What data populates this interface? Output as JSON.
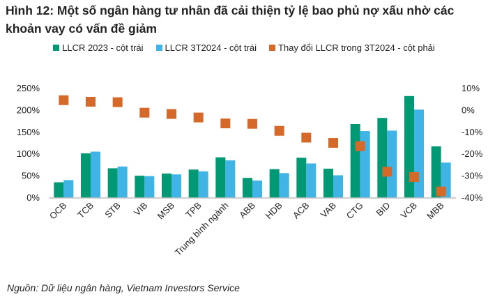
{
  "title": "Hình 12: Một số ngân hàng tư nhân đã cải thiện tỷ lệ bao phủ nợ xấu nhờ các khoản vay có vấn đề giảm",
  "source": "Nguồn: Dữ liệu ngân hàng, Vietnam Investors Service",
  "colors": {
    "llcr_2023": "#009973",
    "llcr_3t2024": "#41B4E6",
    "change": "#D4692A",
    "axis": "#BFBFBF"
  },
  "legend": [
    {
      "label": "LLCR 2023 - cột trái",
      "color_key": "llcr_2023"
    },
    {
      "label": "LLCR 3T2024 - cột trái",
      "color_key": "llcr_3t2024"
    },
    {
      "label": "Thay đổi LLCR trong 3T2024 - cột phải",
      "color_key": "change"
    }
  ],
  "chart_data": {
    "type": "bar",
    "title": "Hình 12: Một số ngân hàng tư nhân đã cải thiện tỷ lệ bao phủ nợ xấu nhờ các khoản vay có vấn đề giảm",
    "xlabel": "",
    "ylabel": "",
    "categories": [
      "OCB",
      "TCB",
      "STB",
      "VIB",
      "MSB",
      "TPB",
      "Trung bình ngành",
      "ABB",
      "HDB",
      "ACB",
      "VAB",
      "CTG",
      "BID",
      "VCB",
      "MBB"
    ],
    "series": [
      {
        "name": "LLCR 2023 - cột trái",
        "axis": "left",
        "kind": "bar",
        "unit": "%",
        "values": [
          35,
          101,
          67,
          50,
          55,
          64,
          92,
          45,
          65,
          91,
          66,
          168,
          182,
          232,
          117
        ]
      },
      {
        "name": "LLCR 3T2024 - cột trái",
        "axis": "left",
        "kind": "bar",
        "unit": "%",
        "values": [
          40,
          105,
          71,
          49,
          53,
          60,
          85,
          39,
          56,
          78,
          51,
          152,
          153,
          201,
          80
        ]
      },
      {
        "name": "Thay đổi LLCR trong 3T2024 - cột phải",
        "axis": "right",
        "kind": "marker",
        "unit": "%",
        "values": [
          4.5,
          3.8,
          3.6,
          -1.2,
          -1.8,
          -3.4,
          -6.1,
          -6.3,
          -9.5,
          -12.6,
          -15.0,
          -16.5,
          -28.2,
          -30.6,
          -37.2
        ]
      }
    ],
    "left_axis": {
      "ylim": [
        0,
        250
      ],
      "ticks": [
        0,
        50,
        100,
        150,
        200,
        250
      ],
      "tick_labels": [
        "0%",
        "50%",
        "100%",
        "150%",
        "200%",
        "250%"
      ]
    },
    "right_axis": {
      "ylim": [
        -40,
        10
      ],
      "ticks": [
        -40,
        -30,
        -20,
        -10,
        0,
        10
      ],
      "tick_labels": [
        "-40%",
        "-30%",
        "-20%",
        "-10%",
        "0%",
        "10%"
      ]
    },
    "grid": false,
    "legend_position": "top-center"
  }
}
